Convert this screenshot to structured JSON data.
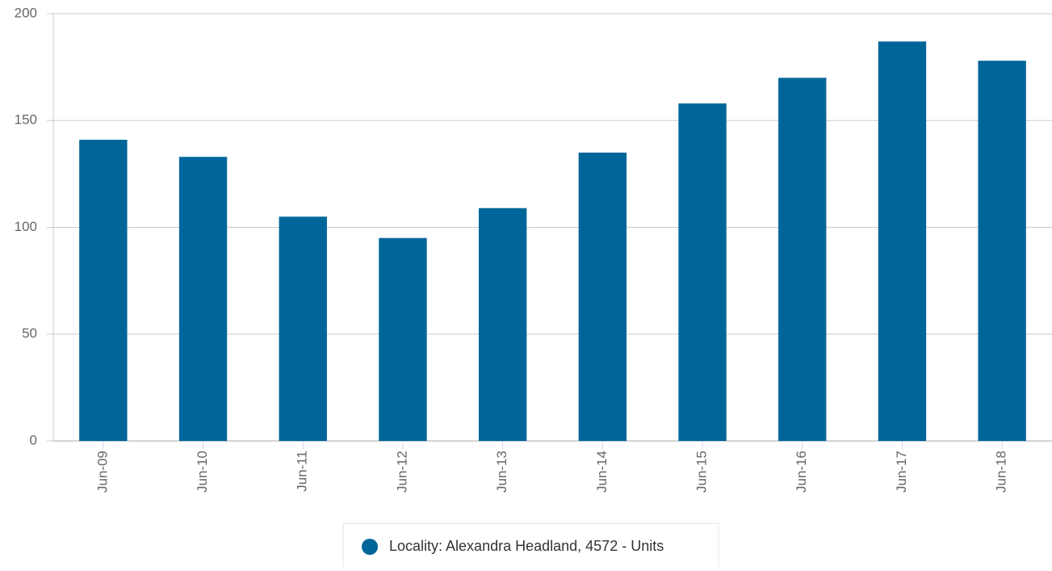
{
  "chart_data": {
    "type": "bar",
    "categories": [
      "Jun-09",
      "Jun-10",
      "Jun-11",
      "Jun-12",
      "Jun-13",
      "Jun-14",
      "Jun-15",
      "Jun-16",
      "Jun-17",
      "Jun-18"
    ],
    "series": [
      {
        "name": "Locality: Alexandra Headland, 4572 - Units",
        "color": "#006699",
        "values": [
          141,
          133,
          105,
          95,
          109,
          135,
          158,
          170,
          187,
          178
        ]
      }
    ],
    "ylim": [
      0,
      200
    ],
    "yticks": [
      0,
      50,
      100,
      150,
      200
    ],
    "grid": true,
    "legend": "bottom"
  }
}
